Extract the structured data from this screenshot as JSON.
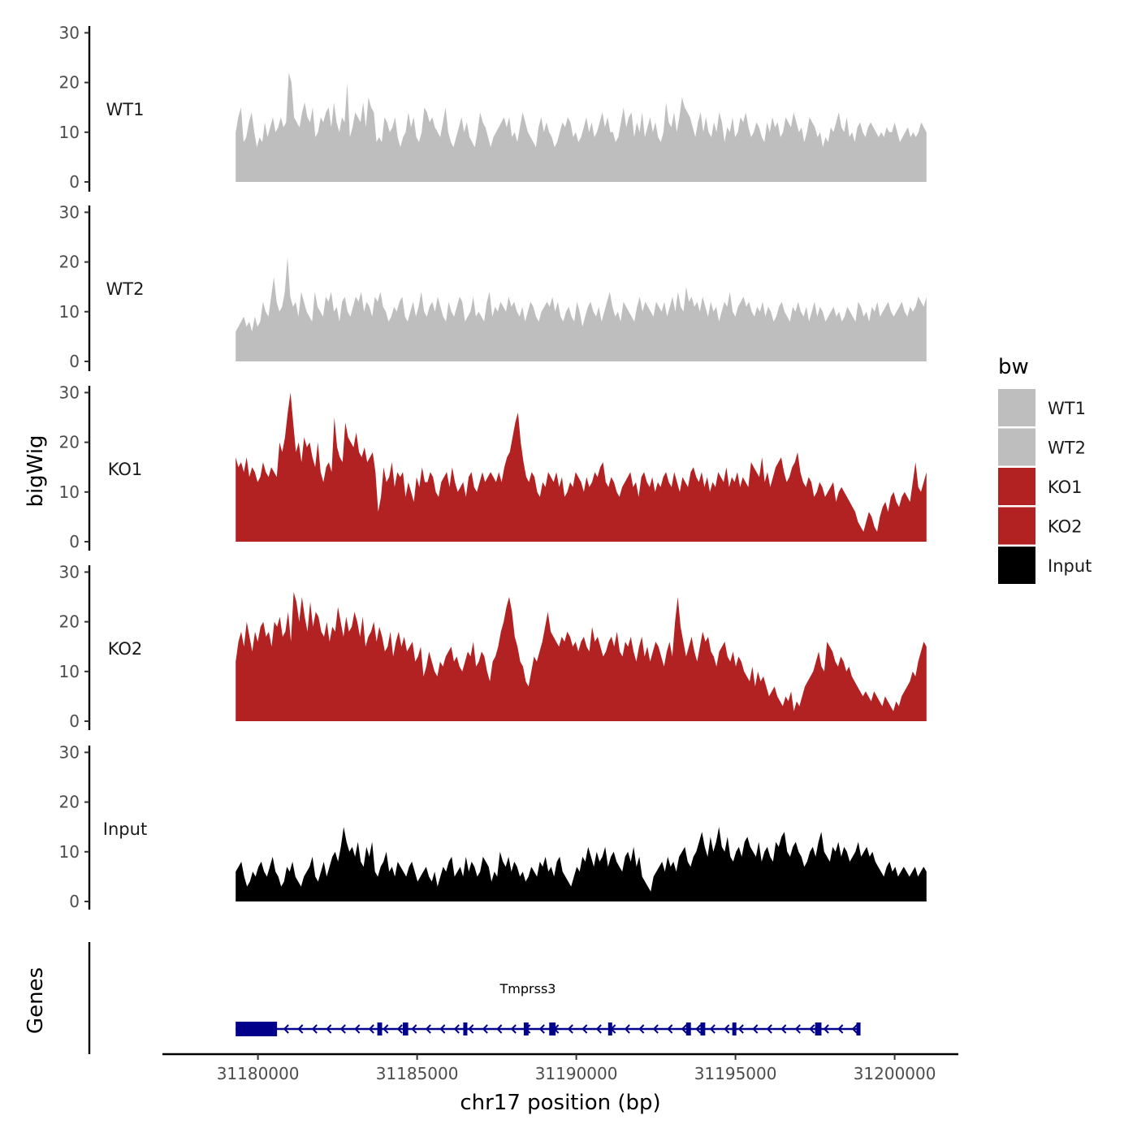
{
  "chart_data": {
    "type": "area",
    "chromosome": "chr17",
    "xlabel": "chr17 position (bp)",
    "ylabel": "bigWig",
    "ylabel_genes": "Genes",
    "xlim": [
      31177000,
      31202000
    ],
    "x_ticks": [
      31180000,
      31185000,
      31190000,
      31195000,
      31200000
    ],
    "x_tick_labels": [
      "31180000",
      "31185000",
      "31190000",
      "31195000",
      "31200000"
    ],
    "ylim": [
      0,
      32
    ],
    "y_ticks": [
      0,
      10,
      20,
      30
    ],
    "y_tick_labels": [
      "0",
      "10",
      "20",
      "30"
    ],
    "signal_x_start": 31179300,
    "signal_x_end": 31201000,
    "legend": {
      "title": "bw",
      "position": "right",
      "entries": [
        {
          "label": "WT1",
          "color": "#BEBEBE"
        },
        {
          "label": "WT2",
          "color": "#BEBEBE"
        },
        {
          "label": "KO1",
          "color": "#B22222"
        },
        {
          "label": "KO2",
          "color": "#B22222"
        },
        {
          "label": "Input",
          "color": "#000000"
        }
      ]
    },
    "series": [
      {
        "name": "WT1",
        "color": "#BEBEBE",
        "values": [
          10,
          13,
          15,
          8,
          9,
          12,
          14,
          10,
          7,
          9,
          8,
          12,
          9,
          11,
          13,
          10,
          11,
          13,
          11,
          12,
          22,
          20,
          13,
          12,
          11,
          14,
          16,
          13,
          12,
          15,
          9,
          10,
          13,
          12,
          14,
          15,
          11,
          16,
          12,
          10,
          13,
          12,
          20,
          9,
          11,
          14,
          13,
          12,
          16,
          11,
          17,
          15,
          14,
          8,
          9,
          8,
          13,
          12,
          10,
          11,
          13,
          9,
          7,
          9,
          10,
          14,
          11,
          13,
          9,
          8,
          10,
          15,
          14,
          12,
          13,
          11,
          10,
          9,
          12,
          15,
          10,
          8,
          7,
          9,
          11,
          13,
          10,
          12,
          9,
          8,
          7,
          10,
          14,
          12,
          11,
          9,
          7,
          9,
          10,
          11,
          12,
          13,
          11,
          13,
          9,
          10,
          8,
          11,
          14,
          12,
          10,
          9,
          8,
          7,
          11,
          13,
          10,
          12,
          10,
          9,
          7,
          8,
          10,
          12,
          11,
          13,
          12,
          9,
          10,
          8,
          9,
          11,
          13,
          10,
          12,
          9,
          10,
          12,
          14,
          11,
          13,
          10,
          10,
          8,
          9,
          12,
          15,
          11,
          13,
          14,
          9,
          12,
          10,
          14,
          9,
          11,
          13,
          10,
          12,
          9,
          8,
          10,
          16,
          12,
          11,
          14,
          10,
          13,
          17,
          15,
          14,
          13,
          11,
          9,
          12,
          14,
          10,
          13,
          10,
          9,
          12,
          10,
          14,
          12,
          8,
          11,
          10,
          13,
          9,
          10,
          13,
          12,
          14,
          11,
          9,
          10,
          12,
          11,
          9,
          8,
          12,
          10,
          13,
          11,
          12,
          9,
          10,
          13,
          12,
          11,
          14,
          12,
          10,
          11,
          8,
          10,
          13,
          12,
          11,
          9,
          10,
          7,
          9,
          8,
          11,
          10,
          12,
          14,
          11,
          10,
          13,
          9,
          10,
          8,
          11,
          12,
          10,
          9,
          11,
          12,
          11,
          10,
          9,
          10,
          9,
          11,
          10,
          10,
          12,
          10,
          8,
          9,
          10,
          11,
          9,
          10,
          9,
          10,
          12,
          11,
          10
        ]
      },
      {
        "name": "WT2",
        "color": "#BEBEBE",
        "values": [
          6,
          7,
          8,
          9,
          7,
          8,
          6,
          9,
          7,
          8,
          12,
          10,
          9,
          13,
          17,
          12,
          10,
          11,
          14,
          21,
          13,
          11,
          12,
          9,
          14,
          12,
          10,
          9,
          8,
          14,
          11,
          10,
          9,
          13,
          12,
          14,
          10,
          11,
          8,
          12,
          13,
          10,
          9,
          11,
          13,
          12,
          14,
          10,
          12,
          11,
          9,
          13,
          12,
          14,
          11,
          10,
          8,
          9,
          11,
          10,
          12,
          13,
          9,
          8,
          10,
          12,
          9,
          11,
          14,
          10,
          9,
          11,
          12,
          10,
          13,
          11,
          9,
          8,
          12,
          10,
          9,
          11,
          13,
          12,
          8,
          9,
          10,
          13,
          9,
          10,
          9,
          8,
          12,
          14,
          9,
          11,
          10,
          12,
          11,
          10,
          13,
          11,
          12,
          10,
          9,
          11,
          8,
          10,
          12,
          11,
          9,
          8,
          10,
          11,
          12,
          11,
          13,
          10,
          12,
          9,
          8,
          10,
          11,
          9,
          8,
          12,
          10,
          7,
          9,
          11,
          12,
          10,
          9,
          11,
          8,
          10,
          12,
          14,
          11,
          9,
          10,
          8,
          12,
          11,
          10,
          9,
          8,
          11,
          13,
          10,
          12,
          11,
          10,
          9,
          12,
          11,
          10,
          12,
          9,
          11,
          13,
          10,
          14,
          11,
          10,
          15,
          12,
          13,
          11,
          12,
          10,
          13,
          11,
          9,
          12,
          10,
          11,
          8,
          10,
          12,
          11,
          14,
          10,
          9,
          11,
          12,
          13,
          11,
          12,
          10,
          9,
          11,
          10,
          12,
          9,
          11,
          10,
          8,
          9,
          11,
          12,
          10,
          9,
          8,
          11,
          10,
          12,
          10,
          9,
          11,
          8,
          10,
          12,
          9,
          11,
          10,
          8,
          9,
          10,
          11,
          9,
          10,
          8,
          9,
          11,
          10,
          9,
          8,
          12,
          11,
          9,
          10,
          8,
          11,
          10,
          12,
          9,
          10,
          11,
          12,
          10,
          9,
          10,
          11,
          12,
          10,
          9,
          11,
          10,
          11,
          13,
          12,
          11,
          13
        ]
      },
      {
        "name": "KO1",
        "color": "#B22222",
        "values": [
          17,
          15,
          16,
          14,
          17,
          13,
          15,
          14,
          12,
          13,
          16,
          14,
          13,
          15,
          14,
          13,
          20,
          18,
          21,
          26,
          30,
          24,
          18,
          20,
          16,
          21,
          19,
          20,
          17,
          15,
          20,
          14,
          12,
          15,
          16,
          14,
          25,
          19,
          17,
          16,
          24,
          21,
          20,
          19,
          22,
          18,
          17,
          19,
          16,
          17,
          18,
          14,
          6,
          9,
          15,
          12,
          13,
          16,
          11,
          14,
          13,
          14,
          9,
          12,
          10,
          8,
          13,
          11,
          15,
          12,
          12,
          14,
          13,
          10,
          9,
          12,
          13,
          14,
          11,
          15,
          12,
          10,
          11,
          12,
          9,
          13,
          14,
          11,
          10,
          12,
          14,
          12,
          13,
          14,
          13,
          12,
          14,
          12,
          15,
          17,
          18,
          21,
          24,
          26,
          20,
          16,
          13,
          12,
          14,
          13,
          10,
          9,
          12,
          11,
          14,
          13,
          12,
          14,
          11,
          13,
          9,
          10,
          12,
          11,
          14,
          13,
          12,
          10,
          13,
          11,
          12,
          14,
          13,
          15,
          16,
          12,
          11,
          13,
          12,
          10,
          9,
          11,
          12,
          13,
          14,
          11,
          12,
          9,
          13,
          14,
          12,
          11,
          13,
          10,
          12,
          11,
          13,
          14,
          12,
          11,
          14,
          12,
          10,
          13,
          12,
          11,
          14,
          15,
          13,
          12,
          14,
          11,
          13,
          10,
          12,
          11,
          14,
          13,
          12,
          15,
          11,
          13,
          12,
          14,
          11,
          13,
          12,
          11,
          16,
          15,
          14,
          13,
          17,
          12,
          14,
          11,
          13,
          15,
          16,
          17,
          14,
          12,
          13,
          15,
          16,
          18,
          14,
          12,
          11,
          13,
          12,
          9,
          10,
          12,
          11,
          9,
          10,
          11,
          12,
          8,
          10,
          11,
          10,
          9,
          8,
          7,
          6,
          4,
          3,
          2,
          4,
          6,
          5,
          3,
          2,
          5,
          7,
          8,
          6,
          9,
          10,
          8,
          7,
          9,
          10,
          9,
          8,
          12,
          16,
          11,
          10,
          12,
          14
        ]
      },
      {
        "name": "KO2",
        "color": "#B22222",
        "values": [
          12,
          16,
          18,
          15,
          20,
          17,
          14,
          18,
          16,
          19,
          20,
          17,
          18,
          15,
          20,
          19,
          21,
          17,
          18,
          22,
          16,
          26,
          24,
          20,
          25,
          21,
          18,
          24,
          19,
          22,
          21,
          18,
          17,
          20,
          16,
          19,
          18,
          23,
          20,
          17,
          21,
          18,
          19,
          22,
          20,
          17,
          21,
          15,
          17,
          18,
          20,
          16,
          19,
          17,
          14,
          15,
          18,
          13,
          16,
          18,
          15,
          17,
          14,
          15,
          16,
          12,
          13,
          15,
          9,
          11,
          14,
          12,
          10,
          9,
          12,
          11,
          13,
          14,
          15,
          12,
          13,
          11,
          10,
          12,
          14,
          13,
          16,
          11,
          12,
          14,
          13,
          10,
          8,
          12,
          13,
          15,
          18,
          20,
          23,
          25,
          22,
          17,
          15,
          12,
          11,
          8,
          7,
          10,
          13,
          12,
          14,
          16,
          19,
          22,
          18,
          17,
          16,
          15,
          17,
          16,
          18,
          17,
          15,
          16,
          14,
          16,
          17,
          15,
          14,
          19,
          16,
          17,
          15,
          13,
          14,
          16,
          17,
          15,
          18,
          14,
          13,
          16,
          15,
          17,
          14,
          12,
          15,
          17,
          13,
          15,
          12,
          14,
          16,
          15,
          13,
          11,
          14,
          16,
          13,
          20,
          25,
          19,
          16,
          13,
          15,
          17,
          14,
          12,
          15,
          18,
          16,
          17,
          14,
          13,
          11,
          14,
          15,
          16,
          13,
          12,
          14,
          11,
          13,
          12,
          10,
          9,
          8,
          11,
          7,
          10,
          8,
          9,
          7,
          5,
          6,
          7,
          5,
          4,
          3,
          5,
          4,
          6,
          2,
          4,
          3,
          5,
          7,
          8,
          9,
          10,
          12,
          14,
          11,
          10,
          16,
          15,
          14,
          12,
          11,
          13,
          12,
          10,
          11,
          9,
          8,
          7,
          6,
          5,
          6,
          5,
          4,
          6,
          5,
          4,
          3,
          5,
          4,
          3,
          2,
          4,
          3,
          5,
          6,
          7,
          8,
          10,
          9,
          12,
          14,
          16,
          15
        ]
      },
      {
        "name": "Input",
        "color": "#000000",
        "values": [
          6,
          7,
          8,
          5,
          3,
          4,
          6,
          5,
          7,
          8,
          6,
          5,
          7,
          9,
          6,
          5,
          3,
          4,
          7,
          6,
          8,
          5,
          4,
          3,
          5,
          6,
          7,
          9,
          5,
          4,
          6,
          8,
          5,
          7,
          9,
          10,
          8,
          11,
          15,
          12,
          10,
          11,
          9,
          12,
          8,
          7,
          11,
          9,
          12,
          6,
          5,
          7,
          8,
          10,
          6,
          7,
          5,
          8,
          7,
          6,
          5,
          7,
          8,
          6,
          4,
          5,
          6,
          7,
          5,
          4,
          6,
          3,
          5,
          7,
          6,
          8,
          9,
          5,
          6,
          7,
          5,
          9,
          6,
          8,
          7,
          5,
          6,
          9,
          8,
          7,
          4,
          6,
          5,
          10,
          8,
          7,
          9,
          6,
          8,
          7,
          5,
          6,
          4,
          5,
          7,
          6,
          5,
          8,
          7,
          9,
          6,
          7,
          5,
          8,
          9,
          6,
          5,
          4,
          3,
          5,
          7,
          6,
          9,
          8,
          11,
          9,
          7,
          10,
          8,
          9,
          11,
          7,
          9,
          10,
          8,
          7,
          6,
          9,
          10,
          8,
          11,
          7,
          9,
          5,
          4,
          3,
          2,
          5,
          6,
          7,
          8,
          6,
          9,
          7,
          8,
          6,
          9,
          10,
          11,
          8,
          7,
          9,
          10,
          12,
          14,
          11,
          9,
          13,
          10,
          12,
          15,
          11,
          10,
          13,
          9,
          8,
          10,
          11,
          9,
          12,
          13,
          11,
          10,
          9,
          12,
          8,
          10,
          11,
          9,
          8,
          12,
          11,
          13,
          14,
          10,
          9,
          11,
          12,
          10,
          9,
          7,
          8,
          10,
          11,
          9,
          12,
          14,
          10,
          9,
          8,
          11,
          10,
          12,
          9,
          11,
          10,
          8,
          9,
          10,
          12,
          9,
          10,
          11,
          9,
          10,
          8,
          7,
          6,
          5,
          7,
          8,
          6,
          7,
          5,
          6,
          7,
          6,
          5,
          6,
          7,
          5,
          6,
          7,
          6
        ]
      }
    ],
    "gene_track": {
      "gene_name": "Tmprss3",
      "strand": "-",
      "color": "#00008B",
      "start": 31179300,
      "end": 31198900,
      "exons": [
        [
          31179300,
          31180600
        ],
        [
          31183750,
          31183900
        ],
        [
          31184550,
          31184720
        ],
        [
          31186450,
          31186550
        ],
        [
          31188350,
          31188500
        ],
        [
          31189150,
          31189350
        ],
        [
          31191000,
          31191100
        ],
        [
          31193450,
          31193600
        ],
        [
          31193900,
          31194050
        ],
        [
          31194900,
          31195000
        ],
        [
          31197500,
          31197700
        ],
        [
          31198800,
          31198900
        ]
      ]
    }
  }
}
